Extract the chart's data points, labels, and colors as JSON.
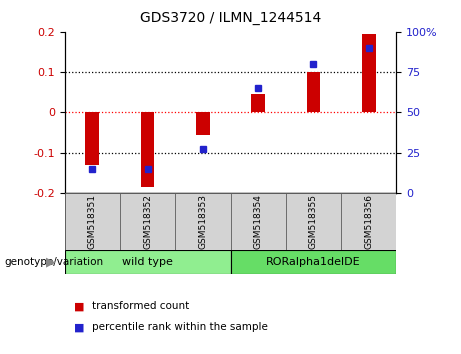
{
  "title": "GDS3720 / ILMN_1244514",
  "categories": [
    "GSM518351",
    "GSM518352",
    "GSM518353",
    "GSM518354",
    "GSM518355",
    "GSM518356"
  ],
  "red_values": [
    -0.13,
    -0.185,
    -0.055,
    0.045,
    0.1,
    0.195
  ],
  "blue_values": [
    15,
    15,
    27,
    65,
    80,
    90
  ],
  "ylim_left": [
    -0.2,
    0.2
  ],
  "ylim_right": [
    0,
    100
  ],
  "yticks_left": [
    -0.2,
    -0.1,
    0.0,
    0.1,
    0.2
  ],
  "ytick_labels_left": [
    "-0.2",
    "-0.1",
    "0",
    "0.1",
    "0.2"
  ],
  "yticks_right": [
    0,
    25,
    50,
    75,
    100
  ],
  "ytick_labels_right": [
    "0",
    "25",
    "50",
    "75",
    "100%"
  ],
  "red_color": "#cc0000",
  "blue_color": "#2222cc",
  "bar_width": 0.25,
  "group1_label": "wild type",
  "group2_label": "RORalpha1delDE",
  "group1_indices": [
    0,
    1,
    2
  ],
  "group2_indices": [
    3,
    4,
    5
  ],
  "group1_color": "#90ee90",
  "group2_color": "#66dd66",
  "legend_label_red": "transformed count",
  "legend_label_blue": "percentile rank within the sample",
  "genotype_label": "genotype/variation",
  "bg_color": "#ffffff",
  "cell_color": "#d3d3d3"
}
